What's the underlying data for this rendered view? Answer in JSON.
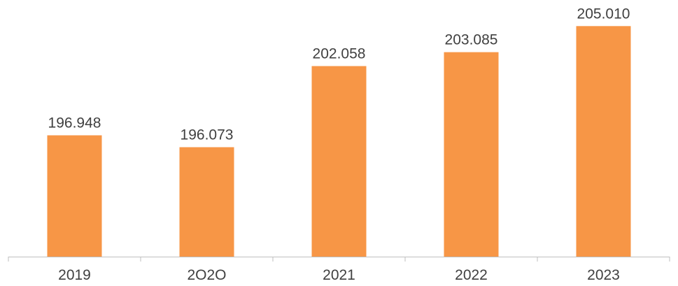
{
  "chart_data": {
    "type": "bar",
    "categories": [
      "2019",
      "2O2O",
      "2021",
      "2022",
      "2023"
    ],
    "values": [
      196.948,
      196.073,
      202.058,
      203.085,
      205.01
    ],
    "data_labels": [
      "196.948",
      "196.073",
      "202.058",
      "203.085",
      "205.010"
    ],
    "title": "",
    "xlabel": "",
    "ylabel": "",
    "ylim": [
      188,
      205.9
    ],
    "grid": false,
    "legend": "none",
    "bar_color": "#F79646",
    "axis_color": "#BFBFBF",
    "label_color": "#404040"
  }
}
